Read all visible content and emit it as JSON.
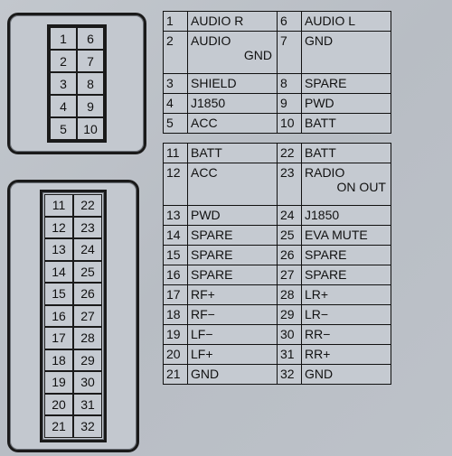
{
  "connector1": {
    "rows": 5,
    "cols": 2,
    "pins": [
      "1",
      "6",
      "2",
      "7",
      "3",
      "8",
      "4",
      "9",
      "5",
      "10"
    ]
  },
  "connector2": {
    "rows": 11,
    "cols": 2,
    "pins": [
      "11",
      "22",
      "12",
      "23",
      "13",
      "24",
      "14",
      "25",
      "15",
      "26",
      "16",
      "27",
      "17",
      "28",
      "18",
      "29",
      "19",
      "30",
      "20",
      "31",
      "21",
      "32"
    ]
  },
  "table1": {
    "rows": [
      {
        "ln": "1",
        "l": "AUDIO R",
        "rn": "6",
        "r": "AUDIO L",
        "tall": false
      },
      {
        "ln": "2",
        "l": "AUDIO",
        "lsub": "GND",
        "rn": "7",
        "r": "GND",
        "tall": true
      },
      {
        "ln": "3",
        "l": "SHIELD",
        "rn": "8",
        "r": "SPARE",
        "tall": false
      },
      {
        "ln": "4",
        "l": "J1850",
        "rn": "9",
        "r": "PWD",
        "tall": false
      },
      {
        "ln": "5",
        "l": "ACC",
        "rn": "10",
        "r": "BATT",
        "tall": false
      }
    ]
  },
  "table2": {
    "rows": [
      {
        "ln": "11",
        "l": "BATT",
        "rn": "22",
        "r": "BATT",
        "tall": false
      },
      {
        "ln": "12",
        "l": "ACC",
        "rn": "23",
        "r": "RADIO",
        "rsub": "ON OUT",
        "tall": true
      },
      {
        "ln": "13",
        "l": "PWD",
        "rn": "24",
        "r": "J1850",
        "tall": false
      },
      {
        "ln": "14",
        "l": "SPARE",
        "rn": "25",
        "r": "EVA MUTE",
        "tall": false
      },
      {
        "ln": "15",
        "l": "SPARE",
        "rn": "26",
        "r": "SPARE",
        "tall": false
      },
      {
        "ln": "16",
        "l": "SPARE",
        "rn": "27",
        "r": "SPARE",
        "tall": false
      },
      {
        "ln": "17",
        "l": "RF+",
        "rn": "28",
        "r": "LR+",
        "tall": false
      },
      {
        "ln": "18",
        "l": "RF−",
        "rn": "29",
        "r": "LR−",
        "tall": false
      },
      {
        "ln": "19",
        "l": "LF−",
        "rn": "30",
        "r": "RR−",
        "tall": false
      },
      {
        "ln": "20",
        "l": "LF+",
        "rn": "31",
        "r": "RR+",
        "tall": false
      },
      {
        "ln": "21",
        "l": "GND",
        "rn": "32",
        "r": "GND",
        "tall": false
      }
    ]
  },
  "colors": {
    "background": "#c0c5cb",
    "border": "#1a1a1a",
    "cell_bg": "#c5cad1"
  }
}
